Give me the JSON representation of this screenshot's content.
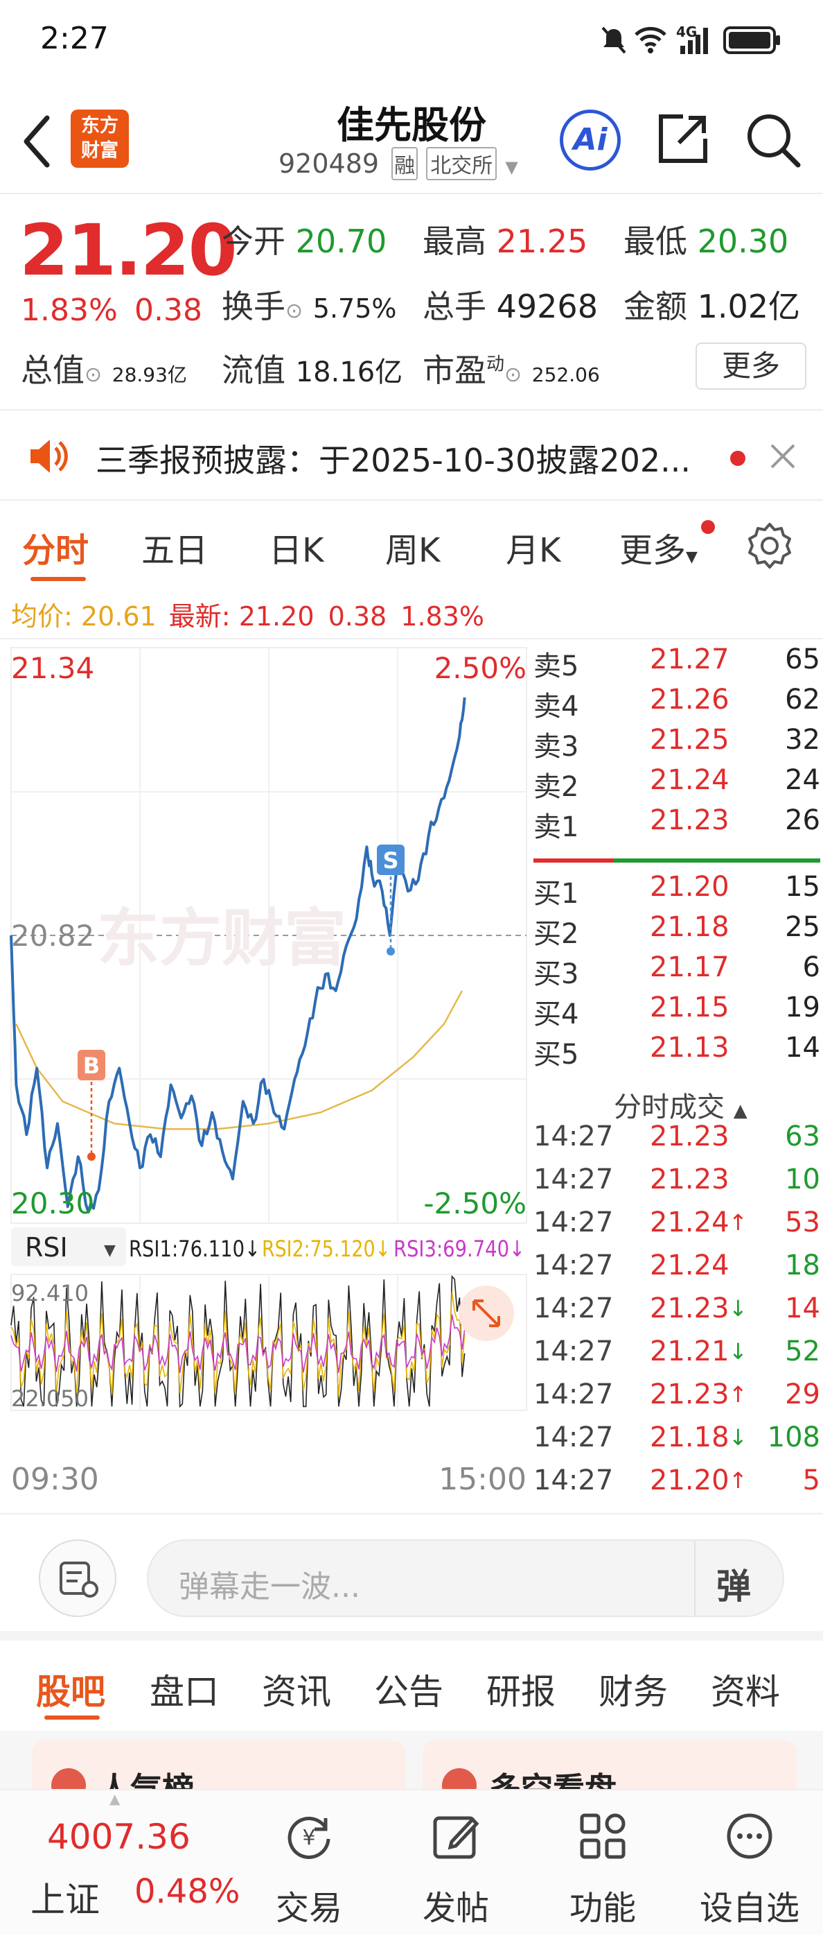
{
  "status_bar": {
    "time": "2:27",
    "network": "4G"
  },
  "header": {
    "brand_logo": "东方\n财富",
    "title": "佳先股份",
    "code": "920489",
    "badge_margin": "融",
    "exchange": "北交所",
    "ai_label": "Ai"
  },
  "quote": {
    "price": "21.20",
    "change_pct": "1.83%",
    "change_amt": "0.38",
    "open_label": "今开",
    "open": "20.70",
    "high_label": "最高",
    "high": "21.25",
    "low_label": "最低",
    "low": "20.30",
    "turnover_label": "换手",
    "turnover": "5.75%",
    "volume_label": "总手",
    "volume": "49268",
    "amount_label": "金额",
    "amount": "1.02亿",
    "mktcap_label": "总值",
    "mktcap": "28.93亿",
    "float_label": "流值",
    "float_cap": "18.16亿",
    "pe_label": "市盈",
    "pe_sup": "动",
    "pe": "252.06",
    "more_label": "更多"
  },
  "notice": {
    "text": "三季报预披露：于2025-10-30披露202..."
  },
  "chart_tabs": [
    "分时",
    "五日",
    "日K",
    "周K",
    "月K",
    "更多"
  ],
  "chart_info": {
    "avg_label": "均价:",
    "avg": "20.61",
    "latest_label": "最新:",
    "latest": "21.20",
    "latest_chg": "0.38",
    "latest_pct": "1.83%"
  },
  "chart_labels": {
    "y_top": "21.34",
    "y_mid": "20.82",
    "y_bot": "20.30",
    "pct_top": "2.50%",
    "pct_bot": "-2.50%",
    "x_start": "09:30",
    "x_end": "15:00",
    "watermark": "东方财富",
    "buy_marker": "B",
    "sell_marker": "S"
  },
  "rsi": {
    "selector": "RSI",
    "rsi1": "RSI1:76.110↓",
    "rsi2": "RSI2:75.120↓",
    "rsi3": "RSI3:69.740↓",
    "y_top": "92.410",
    "y_bot": "22.050"
  },
  "order_book": {
    "asks": [
      {
        "label": "卖5",
        "price": "21.27",
        "qty": "65"
      },
      {
        "label": "卖4",
        "price": "21.26",
        "qty": "62"
      },
      {
        "label": "卖3",
        "price": "21.25",
        "qty": "32"
      },
      {
        "label": "卖2",
        "price": "21.24",
        "qty": "24"
      },
      {
        "label": "卖1",
        "price": "21.23",
        "qty": "26"
      }
    ],
    "bids": [
      {
        "label": "买1",
        "price": "21.20",
        "qty": "15"
      },
      {
        "label": "买2",
        "price": "21.18",
        "qty": "25"
      },
      {
        "label": "买3",
        "price": "21.17",
        "qty": "6"
      },
      {
        "label": "买4",
        "price": "21.15",
        "qty": "19"
      },
      {
        "label": "买5",
        "price": "21.13",
        "qty": "14"
      }
    ]
  },
  "trades_title": "分时成交",
  "trades": [
    {
      "time": "14:27",
      "price": "21.23",
      "arrow": "",
      "qty": "63",
      "dir": "buy"
    },
    {
      "time": "14:27",
      "price": "21.23",
      "arrow": "",
      "qty": "10",
      "dir": "buy"
    },
    {
      "time": "14:27",
      "price": "21.24",
      "arrow": "↑",
      "qty": "53",
      "dir": "sell"
    },
    {
      "time": "14:27",
      "price": "21.24",
      "arrow": "",
      "qty": "18",
      "dir": "buy"
    },
    {
      "time": "14:27",
      "price": "21.23",
      "arrow": "↓",
      "qty": "14",
      "dir": "sell"
    },
    {
      "time": "14:27",
      "price": "21.21",
      "arrow": "↓",
      "qty": "52",
      "dir": "buy"
    },
    {
      "time": "14:27",
      "price": "21.23",
      "arrow": "↑",
      "qty": "29",
      "dir": "sell"
    },
    {
      "time": "14:27",
      "price": "21.18",
      "arrow": "↓",
      "qty": "108",
      "dir": "buy"
    },
    {
      "time": "14:27",
      "price": "21.20",
      "arrow": "↑",
      "qty": "5",
      "dir": "sell"
    }
  ],
  "danmu": {
    "placeholder": "弹幕走一波...",
    "button": "弹"
  },
  "bottom_tabs": [
    "股吧",
    "盘口",
    "资讯",
    "公告",
    "研报",
    "财务",
    "资料"
  ],
  "cards": [
    "人气榜",
    "多空看盘"
  ],
  "index": {
    "value": "4007.36",
    "name": "上证",
    "pct": "0.48%"
  },
  "nav": [
    "交易",
    "发帖",
    "功能",
    "设自选"
  ],
  "colors": {
    "up": "#e02c2c",
    "down": "#1f9a2e",
    "accent": "#e8571e",
    "price_line": "#2d6cb5",
    "avg_line": "#e6b84a"
  }
}
